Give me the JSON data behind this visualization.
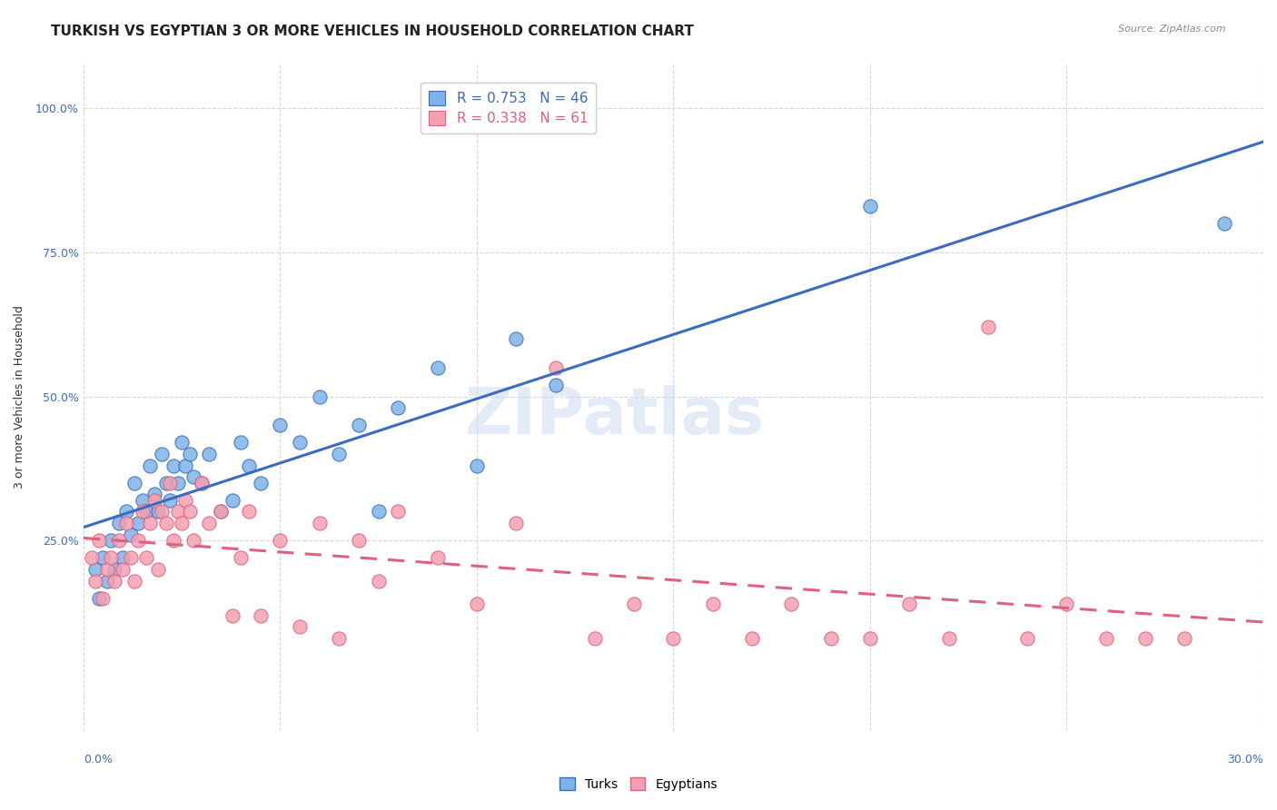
{
  "title": "TURKISH VS EGYPTIAN 3 OR MORE VEHICLES IN HOUSEHOLD CORRELATION CHART",
  "source": "Source: ZipAtlas.com",
  "ylabel": "3 or more Vehicles in Household",
  "ytick_values": [
    25,
    50,
    75,
    100
  ],
  "xlim": [
    0,
    30
  ],
  "ylim": [
    -8,
    108
  ],
  "r_turks": 0.753,
  "n_turks": 46,
  "r_egyptians": 0.338,
  "n_egyptians": 61,
  "color_turks": "#7eb3e8",
  "color_egyptians": "#f4a0b0",
  "line_color_turks": "#3a6bbf",
  "line_color_egyptians": "#e06080",
  "turks_x": [
    0.3,
    0.4,
    0.5,
    0.6,
    0.7,
    0.8,
    0.9,
    1.0,
    1.1,
    1.2,
    1.3,
    1.4,
    1.5,
    1.6,
    1.7,
    1.8,
    1.9,
    2.0,
    2.1,
    2.2,
    2.3,
    2.4,
    2.5,
    2.6,
    2.7,
    2.8,
    3.0,
    3.2,
    3.5,
    3.8,
    4.0,
    4.2,
    4.5,
    5.0,
    5.5,
    6.0,
    6.5,
    7.0,
    7.5,
    8.0,
    9.0,
    10.0,
    11.0,
    12.0,
    20.0,
    29.0
  ],
  "turks_y": [
    20,
    15,
    22,
    18,
    25,
    20,
    28,
    22,
    30,
    26,
    35,
    28,
    32,
    30,
    38,
    33,
    30,
    40,
    35,
    32,
    38,
    35,
    42,
    38,
    40,
    36,
    35,
    40,
    30,
    32,
    42,
    38,
    35,
    45,
    42,
    50,
    40,
    45,
    30,
    48,
    55,
    38,
    60,
    52,
    83,
    80
  ],
  "egyptians_x": [
    0.2,
    0.3,
    0.4,
    0.5,
    0.6,
    0.7,
    0.8,
    0.9,
    1.0,
    1.1,
    1.2,
    1.3,
    1.4,
    1.5,
    1.6,
    1.7,
    1.8,
    1.9,
    2.0,
    2.1,
    2.2,
    2.3,
    2.4,
    2.5,
    2.6,
    2.7,
    2.8,
    3.0,
    3.2,
    3.5,
    3.8,
    4.0,
    4.2,
    4.5,
    5.0,
    5.5,
    6.0,
    6.5,
    7.0,
    7.5,
    8.0,
    9.0,
    10.0,
    11.0,
    12.0,
    13.0,
    14.0,
    15.0,
    16.0,
    17.0,
    18.0,
    19.0,
    20.0,
    21.0,
    22.0,
    23.0,
    24.0,
    25.0,
    26.0,
    27.0,
    28.0
  ],
  "egyptians_y": [
    22,
    18,
    25,
    15,
    20,
    22,
    18,
    25,
    20,
    28,
    22,
    18,
    25,
    30,
    22,
    28,
    32,
    20,
    30,
    28,
    35,
    25,
    30,
    28,
    32,
    30,
    25,
    35,
    28,
    30,
    12,
    22,
    30,
    12,
    25,
    10,
    28,
    8,
    25,
    18,
    30,
    22,
    14,
    28,
    55,
    8,
    14,
    8,
    14,
    8,
    14,
    8,
    8,
    14,
    8,
    62,
    8,
    14,
    8,
    8,
    8
  ],
  "watermark": "ZIPatlas",
  "title_fontsize": 11,
  "axis_fontsize": 9,
  "tick_fontsize": 9
}
